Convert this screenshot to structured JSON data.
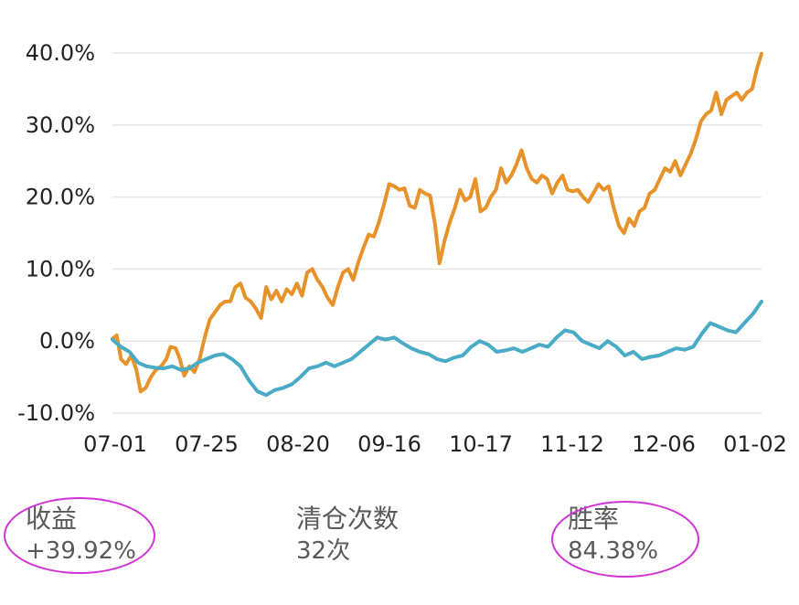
{
  "chart_data": {
    "type": "line",
    "title": "",
    "xlabel": "",
    "ylabel": "",
    "ylim": [
      -10,
      40
    ],
    "y_ticks": [
      "40.0%",
      "30.0%",
      "20.0%",
      "10.0%",
      "0.0%",
      "-10.0%"
    ],
    "x_ticks": [
      "07-01",
      "07-25",
      "08-20",
      "09-16",
      "10-17",
      "11-12",
      "12-06",
      "01-02"
    ],
    "grid": true,
    "x_range": [
      0,
      100
    ],
    "series": [
      {
        "color": "#e8922a",
        "points": [
          [
            0,
            0.3
          ],
          [
            0.5,
            0.8
          ],
          [
            1,
            -2.5
          ],
          [
            1.6,
            -3.2
          ],
          [
            2.2,
            -2.0
          ],
          [
            2.8,
            -4.0
          ],
          [
            3.3,
            -7.0
          ],
          [
            3.9,
            -6.5
          ],
          [
            4.5,
            -5.0
          ],
          [
            5.1,
            -4.0
          ],
          [
            5.7,
            -3.5
          ],
          [
            6.3,
            -2.5
          ],
          [
            6.8,
            -0.8
          ],
          [
            7.4,
            -1.0
          ],
          [
            7.9,
            -2.5
          ],
          [
            8.4,
            -4.8
          ],
          [
            9.0,
            -3.5
          ],
          [
            9.6,
            -4.3
          ],
          [
            10.2,
            -2.5
          ],
          [
            10.8,
            0.5
          ],
          [
            11.4,
            3.0
          ],
          [
            12.0,
            4.0
          ],
          [
            12.6,
            5.0
          ],
          [
            13.2,
            5.5
          ],
          [
            13.8,
            5.5
          ],
          [
            14.4,
            7.5
          ],
          [
            15.0,
            8.0
          ],
          [
            15.6,
            6.0
          ],
          [
            16.2,
            5.5
          ],
          [
            16.8,
            4.5
          ],
          [
            17.4,
            3.2
          ],
          [
            18.0,
            7.5
          ],
          [
            18.6,
            5.8
          ],
          [
            19.2,
            7.0
          ],
          [
            19.8,
            5.5
          ],
          [
            20.4,
            7.2
          ],
          [
            21.0,
            6.5
          ],
          [
            21.6,
            8.0
          ],
          [
            22.2,
            6.3
          ],
          [
            22.8,
            9.5
          ],
          [
            23.4,
            10.0
          ],
          [
            24.0,
            8.5
          ],
          [
            24.6,
            7.5
          ],
          [
            25.2,
            6.0
          ],
          [
            25.8,
            5.0
          ],
          [
            26.4,
            7.5
          ],
          [
            27.0,
            9.5
          ],
          [
            27.6,
            10.0
          ],
          [
            28.2,
            8.5
          ],
          [
            28.8,
            11.0
          ],
          [
            29.4,
            13.0
          ],
          [
            30.0,
            14.8
          ],
          [
            30.6,
            14.5
          ],
          [
            31.2,
            16.5
          ],
          [
            31.8,
            19.0
          ],
          [
            32.4,
            21.8
          ],
          [
            33.0,
            21.5
          ],
          [
            33.6,
            21.0
          ],
          [
            34.2,
            21.2
          ],
          [
            34.8,
            18.8
          ],
          [
            35.4,
            18.5
          ],
          [
            36.0,
            21.0
          ],
          [
            36.6,
            20.5
          ],
          [
            37.2,
            20.2
          ],
          [
            37.8,
            16.0
          ],
          [
            38.3,
            10.8
          ],
          [
            38.9,
            14.0
          ],
          [
            39.5,
            16.5
          ],
          [
            40.1,
            18.5
          ],
          [
            40.7,
            21.0
          ],
          [
            41.3,
            19.5
          ],
          [
            41.9,
            20.0
          ],
          [
            42.5,
            22.5
          ],
          [
            43.1,
            18.0
          ],
          [
            43.7,
            18.5
          ],
          [
            44.3,
            20.0
          ],
          [
            44.9,
            21.0
          ],
          [
            45.5,
            24.0
          ],
          [
            46.1,
            22.0
          ],
          [
            46.7,
            23.0
          ],
          [
            47.3,
            24.5
          ],
          [
            47.9,
            26.5
          ],
          [
            48.5,
            24.0
          ],
          [
            49.1,
            22.5
          ],
          [
            49.7,
            22.0
          ],
          [
            50.3,
            23.0
          ],
          [
            50.9,
            22.5
          ],
          [
            51.5,
            20.5
          ],
          [
            52.1,
            22.0
          ],
          [
            52.7,
            23.0
          ],
          [
            53.3,
            21.0
          ],
          [
            53.9,
            20.8
          ],
          [
            54.5,
            21.0
          ],
          [
            55.1,
            20.0
          ],
          [
            55.7,
            19.3
          ],
          [
            56.3,
            20.5
          ],
          [
            56.9,
            21.8
          ],
          [
            57.5,
            21.0
          ],
          [
            58.1,
            21.5
          ],
          [
            58.7,
            18.5
          ],
          [
            59.3,
            16.0
          ],
          [
            59.9,
            15.0
          ],
          [
            60.5,
            17.0
          ],
          [
            61.1,
            16.0
          ],
          [
            61.7,
            18.0
          ],
          [
            62.3,
            18.5
          ],
          [
            62.9,
            20.5
          ],
          [
            63.5,
            21.0
          ],
          [
            64.1,
            22.5
          ],
          [
            64.7,
            24.0
          ],
          [
            65.3,
            23.5
          ],
          [
            65.9,
            25.0
          ],
          [
            66.5,
            23.0
          ],
          [
            67.1,
            24.5
          ],
          [
            67.7,
            26.0
          ],
          [
            68.3,
            28.0
          ],
          [
            68.9,
            30.5
          ],
          [
            69.5,
            31.5
          ],
          [
            70.1,
            32.0
          ],
          [
            70.7,
            34.5
          ],
          [
            71.3,
            31.5
          ],
          [
            71.9,
            33.5
          ],
          [
            72.5,
            34.0
          ],
          [
            73.1,
            34.5
          ],
          [
            73.7,
            33.5
          ],
          [
            74.3,
            34.5
          ],
          [
            74.9,
            35.0
          ],
          [
            75.5,
            38.0
          ],
          [
            76.0,
            39.9
          ]
        ]
      },
      {
        "color": "#4aabc6",
        "points": [
          [
            0,
            0.2
          ],
          [
            1,
            -0.8
          ],
          [
            2,
            -1.5
          ],
          [
            3,
            -3.0
          ],
          [
            4,
            -3.5
          ],
          [
            5,
            -3.7
          ],
          [
            6,
            -3.8
          ],
          [
            7,
            -3.5
          ],
          [
            8,
            -4.0
          ],
          [
            9,
            -3.8
          ],
          [
            10,
            -3.0
          ],
          [
            11,
            -2.5
          ],
          [
            12,
            -2.0
          ],
          [
            13,
            -1.8
          ],
          [
            14,
            -2.5
          ],
          [
            15,
            -3.5
          ],
          [
            16,
            -5.5
          ],
          [
            17,
            -7.0
          ],
          [
            18,
            -7.5
          ],
          [
            19,
            -6.8
          ],
          [
            20,
            -6.5
          ],
          [
            21,
            -6.0
          ],
          [
            22,
            -5.0
          ],
          [
            23,
            -3.8
          ],
          [
            24,
            -3.5
          ],
          [
            25,
            -3.0
          ],
          [
            26,
            -3.5
          ],
          [
            27,
            -3.0
          ],
          [
            28,
            -2.5
          ],
          [
            29,
            -1.5
          ],
          [
            30,
            -0.5
          ],
          [
            31,
            0.5
          ],
          [
            32,
            0.2
          ],
          [
            33,
            0.5
          ],
          [
            34,
            -0.3
          ],
          [
            35,
            -1.0
          ],
          [
            36,
            -1.5
          ],
          [
            37,
            -1.8
          ],
          [
            38,
            -2.5
          ],
          [
            39,
            -2.8
          ],
          [
            40,
            -2.3
          ],
          [
            41,
            -2.0
          ],
          [
            42,
            -0.8
          ],
          [
            43,
            0.0
          ],
          [
            44,
            -0.5
          ],
          [
            45,
            -1.5
          ],
          [
            46,
            -1.3
          ],
          [
            47,
            -1.0
          ],
          [
            48,
            -1.5
          ],
          [
            49,
            -1.0
          ],
          [
            50,
            -0.5
          ],
          [
            51,
            -0.8
          ],
          [
            52,
            0.5
          ],
          [
            53,
            1.5
          ],
          [
            54,
            1.2
          ],
          [
            55,
            0.0
          ],
          [
            56,
            -0.5
          ],
          [
            57,
            -1.0
          ],
          [
            58,
            0.0
          ],
          [
            59,
            -0.8
          ],
          [
            60,
            -2.0
          ],
          [
            61,
            -1.5
          ],
          [
            62,
            -2.5
          ],
          [
            63,
            -2.2
          ],
          [
            64,
            -2.0
          ],
          [
            65,
            -1.5
          ],
          [
            66,
            -1.0
          ],
          [
            67,
            -1.2
          ],
          [
            68,
            -0.8
          ],
          [
            69,
            1.0
          ],
          [
            70,
            2.5
          ],
          [
            71,
            2.0
          ],
          [
            72,
            1.5
          ],
          [
            73,
            1.2
          ],
          [
            74,
            2.5
          ],
          [
            75,
            3.8
          ],
          [
            76,
            5.5
          ]
        ]
      }
    ]
  },
  "stats": {
    "return_label": "收益",
    "return_value": "+39.92%",
    "trades_label": "清仓次数",
    "trades_value": "32次",
    "winrate_label": "胜率",
    "winrate_value": "84.38%"
  }
}
